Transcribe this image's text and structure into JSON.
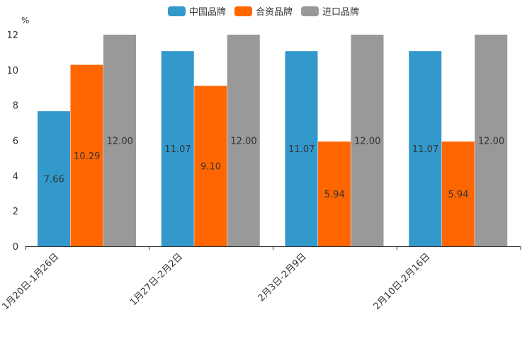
{
  "chart_data": {
    "type": "bar",
    "title": "",
    "ylabel": "%",
    "xlabel": "",
    "ylim": [
      0,
      12
    ],
    "yticks": [
      "0",
      "2",
      "4",
      "6",
      "8",
      "10",
      "12"
    ],
    "categories": [
      "1月20日-1月26日",
      "1月27日-2月2日",
      "2月3日-2月9日",
      "2月10日-2月16日"
    ],
    "series": [
      {
        "name": "中国品牌",
        "color": "#3399cc",
        "values": [
          7.66,
          11.07,
          11.07,
          11.07
        ],
        "labels": [
          "7.66",
          "11.07",
          "11.07",
          "11.07"
        ]
      },
      {
        "name": "合资品牌",
        "color": "#ff6600",
        "values": [
          10.29,
          9.1,
          5.94,
          5.94
        ],
        "labels": [
          "10.29",
          "9.10",
          "5.94",
          "5.94"
        ]
      },
      {
        "name": "进口品牌",
        "color": "#999999",
        "values": [
          12.0,
          12.0,
          12.0,
          12.0
        ],
        "labels": [
          "12.00",
          "12.00",
          "12.00",
          "12.00"
        ]
      }
    ],
    "legend_position": "top-center",
    "grid": false
  }
}
